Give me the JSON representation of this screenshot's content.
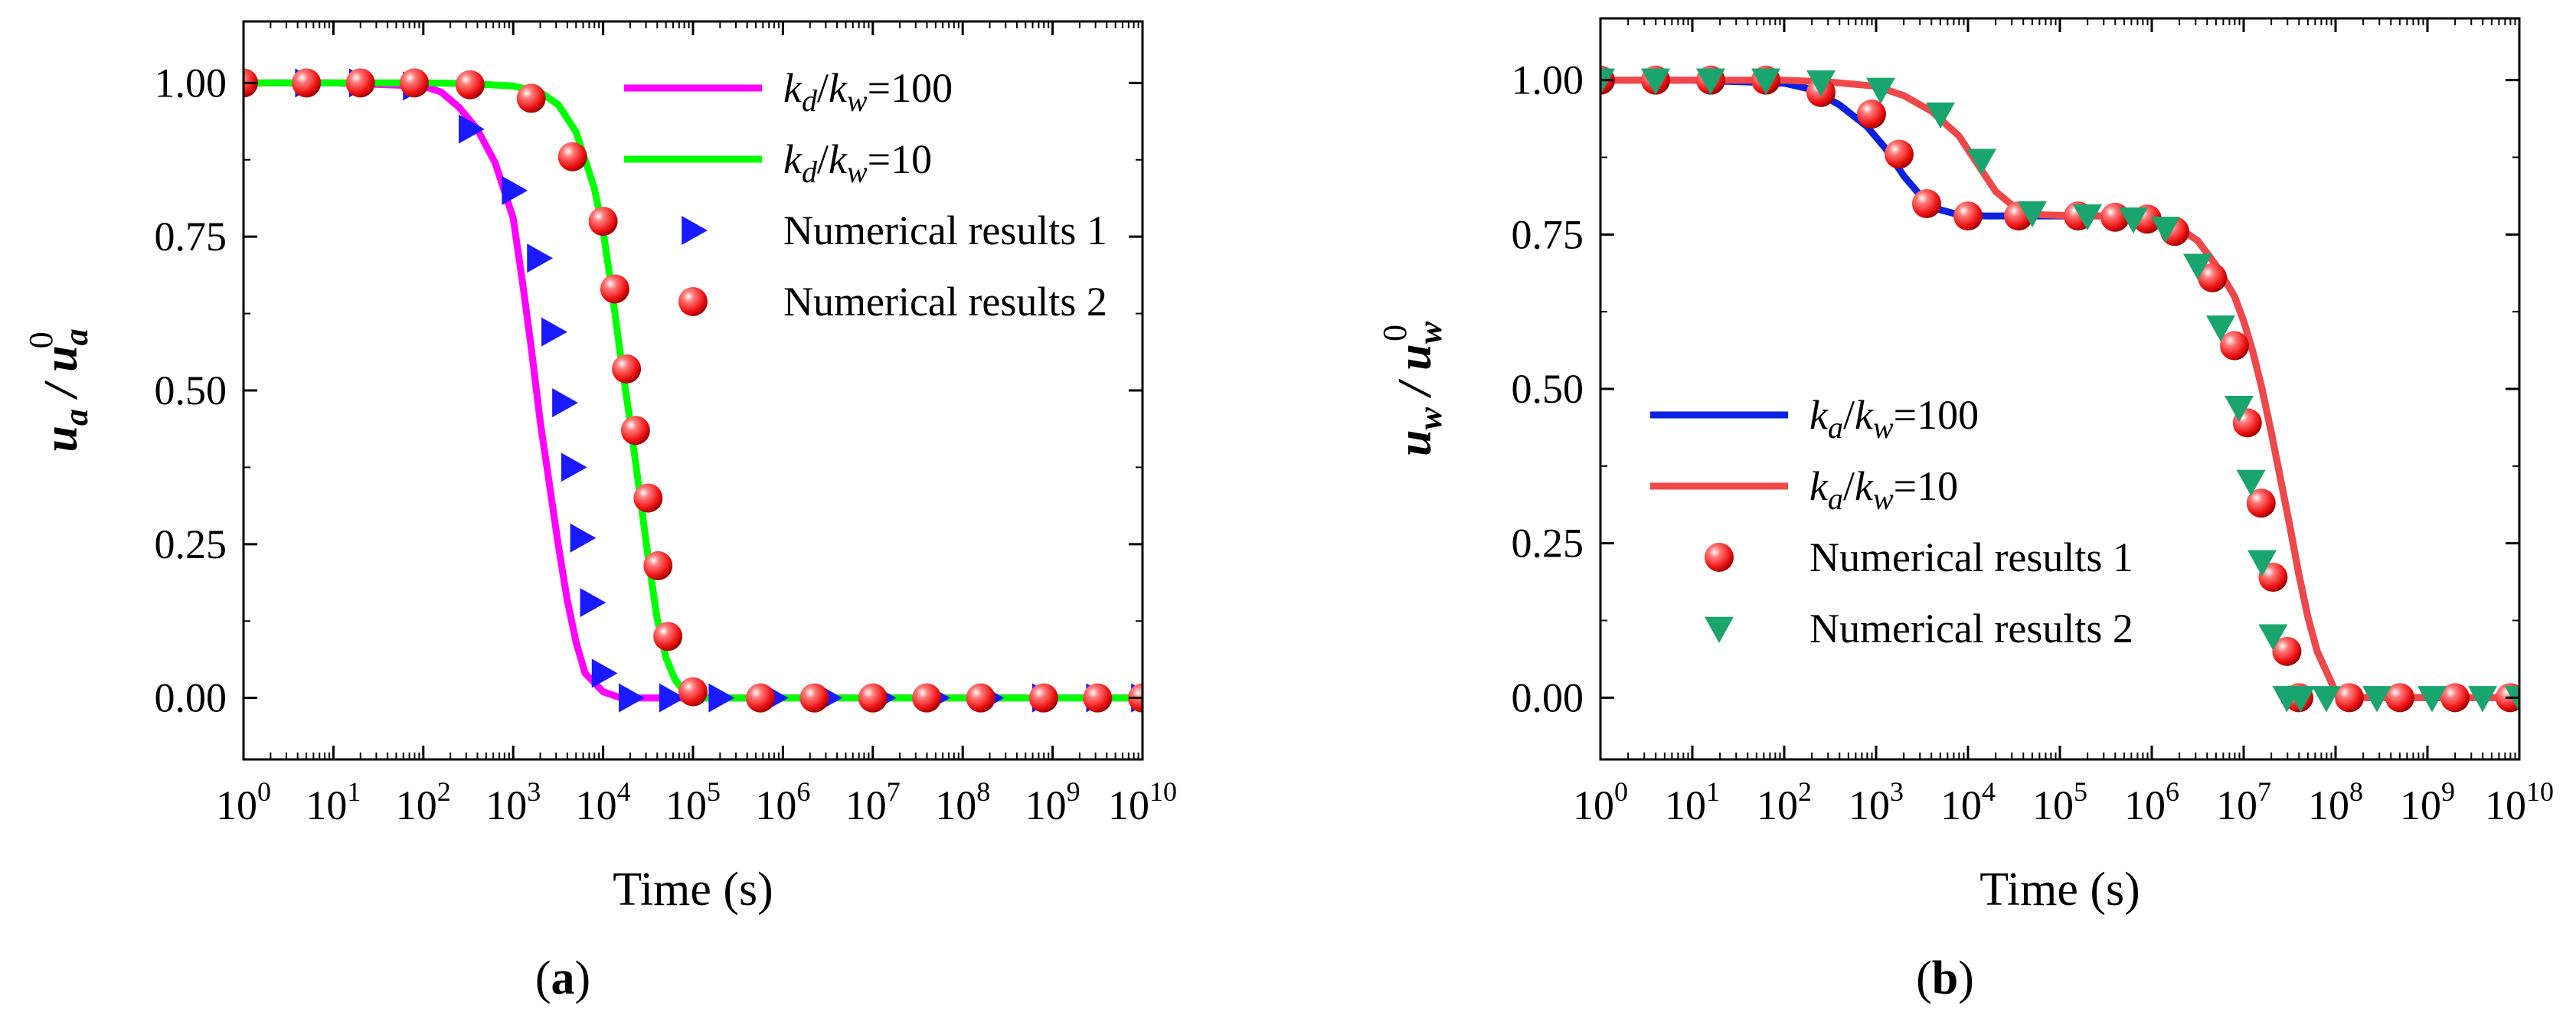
{
  "chart_data": [
    {
      "type": "line",
      "panel": "a",
      "panel_label": "(a)",
      "xlabel": "Time (s)",
      "xscale": "log",
      "xlim": [
        1,
        10000000000
      ],
      "x_tick_base": "10",
      "x_tick_exponents": [
        "0",
        "1",
        "2",
        "3",
        "4",
        "5",
        "6",
        "7",
        "8",
        "9",
        "10"
      ],
      "ylabel": "u_a / u_a^0",
      "ylabel_parts": {
        "var": "u",
        "sub": "a",
        "slash": " / ",
        "var2": "u",
        "sub2": "a",
        "sup2": "0"
      },
      "ylim": [
        -0.1,
        1.1
      ],
      "y_tick_values": [
        0,
        0.25,
        0.5,
        0.75,
        1.0
      ],
      "y_tick_labels": [
        "0.00",
        "0.25",
        "0.50",
        "0.75",
        "1.00"
      ],
      "legend_position": "top-right",
      "series": [
        {
          "name": "k_d/k_w=100",
          "legend_label": {
            "k1": "k",
            "s1": "d",
            "sep": "/",
            "k2": "k",
            "s2": "w",
            "rest": "=100"
          },
          "kind": "line",
          "color": "#ff00ff",
          "logx": [
            0,
            1,
            2,
            2.2,
            2.4,
            2.6,
            2.8,
            3.0,
            3.1,
            3.2,
            3.3,
            3.4,
            3.5,
            3.6,
            3.7,
            3.8,
            4.0,
            4.2,
            4.5,
            5,
            6,
            7,
            8,
            9,
            10
          ],
          "y": [
            1.0,
            1.0,
            0.995,
            0.985,
            0.96,
            0.925,
            0.87,
            0.78,
            0.68,
            0.57,
            0.45,
            0.35,
            0.25,
            0.16,
            0.09,
            0.04,
            0.01,
            0.0,
            0.0,
            0,
            0,
            0,
            0,
            0,
            0
          ]
        },
        {
          "name": "k_d/k_w=10",
          "legend_label": {
            "k1": "k",
            "s1": "d",
            "sep": "/",
            "k2": "k",
            "s2": "w",
            "rest": "=10"
          },
          "kind": "line",
          "color": "#00ff00",
          "logx": [
            0,
            1,
            2,
            2.5,
            3.0,
            3.3,
            3.5,
            3.7,
            3.9,
            4.0,
            4.1,
            4.2,
            4.3,
            4.4,
            4.5,
            4.6,
            4.7,
            4.8,
            4.9,
            5.0,
            5.2,
            5.5,
            6,
            7,
            8,
            9,
            10
          ],
          "y": [
            1.0,
            1.0,
            1.0,
            0.999,
            0.995,
            0.985,
            0.965,
            0.92,
            0.83,
            0.76,
            0.66,
            0.55,
            0.45,
            0.34,
            0.23,
            0.13,
            0.065,
            0.03,
            0.01,
            0.0,
            0,
            0,
            0,
            0,
            0,
            0,
            0
          ]
        },
        {
          "name": "Numerical results 1",
          "kind": "marker",
          "marker": "triangle-right",
          "color": "#1a1aff",
          "logx": [
            0,
            0.7,
            1.3,
            1.9,
            2.52,
            3.0,
            3.28,
            3.44,
            3.56,
            3.66,
            3.76,
            3.87,
            4.0,
            4.3,
            4.75,
            5.3,
            5.9,
            6.5,
            7.1,
            7.7,
            8.3,
            8.9,
            9.5,
            10
          ],
          "y": [
            1.0,
            1.0,
            1.0,
            0.995,
            0.925,
            0.825,
            0.715,
            0.595,
            0.48,
            0.375,
            0.26,
            0.155,
            0.04,
            0.0,
            0,
            0,
            0,
            0,
            0,
            0,
            0,
            0,
            0,
            0
          ]
        },
        {
          "name": "Numerical results 2",
          "kind": "marker",
          "marker": "sphere",
          "color": "#ee1111",
          "logx": [
            0,
            0.7,
            1.3,
            1.9,
            2.52,
            3.2,
            3.66,
            4.0,
            4.13,
            4.26,
            4.36,
            4.5,
            4.61,
            4.72,
            5.0,
            5.75,
            6.35,
            7.0,
            7.6,
            8.2,
            8.9,
            9.5,
            10
          ],
          "y": [
            1.0,
            1.0,
            1.0,
            1.0,
            0.997,
            0.975,
            0.88,
            0.775,
            0.665,
            0.535,
            0.435,
            0.325,
            0.215,
            0.1,
            0.01,
            0,
            0,
            0,
            0,
            0,
            0,
            0,
            0
          ]
        }
      ]
    },
    {
      "type": "line",
      "panel": "b",
      "panel_label": "(b)",
      "xlabel": "Time (s)",
      "xscale": "log",
      "xlim": [
        1,
        10000000000
      ],
      "x_tick_base": "10",
      "x_tick_exponents": [
        "0",
        "1",
        "2",
        "3",
        "4",
        "5",
        "6",
        "7",
        "8",
        "9",
        "10"
      ],
      "ylabel": "u_w / u_w^0",
      "ylabel_parts": {
        "var": "u",
        "sub": "w",
        "slash": " / ",
        "var2": "u",
        "sub2": "w",
        "sup2": "0"
      },
      "ylim": [
        -0.1,
        1.1
      ],
      "y_tick_values": [
        0,
        0.25,
        0.5,
        0.75,
        1.0
      ],
      "y_tick_labels": [
        "0.00",
        "0.25",
        "0.50",
        "0.75",
        "1.00"
      ],
      "legend_position": "center-left",
      "series": [
        {
          "name": "k_a/k_w=100",
          "legend_label": {
            "k1": "k",
            "s1": "a",
            "sep": "/",
            "k2": "k",
            "s2": "w",
            "rest": "=100"
          },
          "kind": "line",
          "color": "#0a22e0",
          "logx": [
            0,
            1,
            2,
            2.3,
            2.6,
            2.9,
            3.1,
            3.3,
            3.5,
            3.7,
            3.9,
            4.2,
            4.6,
            5,
            5.5,
            6,
            6.3,
            6.5,
            6.7,
            6.9,
            7.0,
            7.1,
            7.2,
            7.3,
            7.4,
            7.5,
            7.6,
            7.7,
            7.8,
            8.0,
            8.2,
            9,
            10
          ],
          "y": [
            1.0,
            1.0,
            0.995,
            0.985,
            0.96,
            0.925,
            0.89,
            0.845,
            0.81,
            0.79,
            0.782,
            0.78,
            0.78,
            0.78,
            0.78,
            0.775,
            0.76,
            0.74,
            0.7,
            0.65,
            0.61,
            0.56,
            0.5,
            0.43,
            0.355,
            0.28,
            0.2,
            0.13,
            0.075,
            0.01,
            0.0,
            0,
            0
          ]
        },
        {
          "name": "k_a/k_w=10",
          "legend_label": {
            "k1": "k",
            "s1": "a",
            "sep": "/",
            "k2": "k",
            "s2": "w",
            "rest": "=10"
          },
          "kind": "line",
          "color": "#f04848",
          "logx": [
            0,
            1,
            2,
            2.5,
            3.0,
            3.3,
            3.6,
            3.9,
            4.1,
            4.3,
            4.5,
            4.8,
            5.2,
            5.6,
            6,
            6.3,
            6.5,
            6.7,
            6.9,
            7.0,
            7.1,
            7.2,
            7.3,
            7.4,
            7.5,
            7.6,
            7.7,
            7.8,
            8.0,
            8.2,
            9,
            10
          ],
          "y": [
            1.0,
            1.0,
            1.0,
            0.997,
            0.99,
            0.975,
            0.95,
            0.91,
            0.865,
            0.82,
            0.795,
            0.782,
            0.78,
            0.78,
            0.775,
            0.76,
            0.74,
            0.7,
            0.65,
            0.61,
            0.56,
            0.5,
            0.43,
            0.355,
            0.28,
            0.2,
            0.13,
            0.075,
            0.01,
            0.0,
            0,
            0
          ]
        },
        {
          "name": "Numerical results 1",
          "kind": "marker",
          "marker": "sphere",
          "color": "#ee1111",
          "logx": [
            0,
            0.6,
            1.2,
            1.8,
            2.4,
            2.95,
            3.25,
            3.55,
            4.0,
            4.55,
            5.2,
            5.6,
            5.95,
            6.25,
            6.66,
            6.9,
            7.04,
            7.19,
            7.32,
            7.47,
            7.6,
            8.15,
            8.7,
            9.3,
            9.9
          ],
          "y": [
            1.0,
            1.0,
            1.0,
            1.0,
            0.98,
            0.945,
            0.88,
            0.8,
            0.78,
            0.78,
            0.78,
            0.778,
            0.775,
            0.755,
            0.68,
            0.57,
            0.445,
            0.315,
            0.195,
            0.075,
            0.0,
            0.0,
            0,
            0,
            0
          ]
        },
        {
          "name": "Numerical results 2",
          "kind": "marker",
          "marker": "triangle-down",
          "color": "#1aa56e",
          "logx": [
            0,
            0.6,
            1.2,
            1.8,
            2.4,
            3.05,
            3.7,
            4.15,
            4.7,
            5.3,
            5.8,
            6.15,
            6.5,
            6.75,
            6.95,
            7.08,
            7.2,
            7.32,
            7.47,
            7.62,
            7.9,
            8.45,
            9.05,
            9.6,
            10
          ],
          "y": [
            1.0,
            1.0,
            1.0,
            1.0,
            0.997,
            0.985,
            0.945,
            0.87,
            0.785,
            0.78,
            0.775,
            0.76,
            0.7,
            0.6,
            0.47,
            0.35,
            0.22,
            0.1,
            0.0,
            0.0,
            0,
            0,
            0,
            0,
            0
          ]
        }
      ]
    }
  ]
}
